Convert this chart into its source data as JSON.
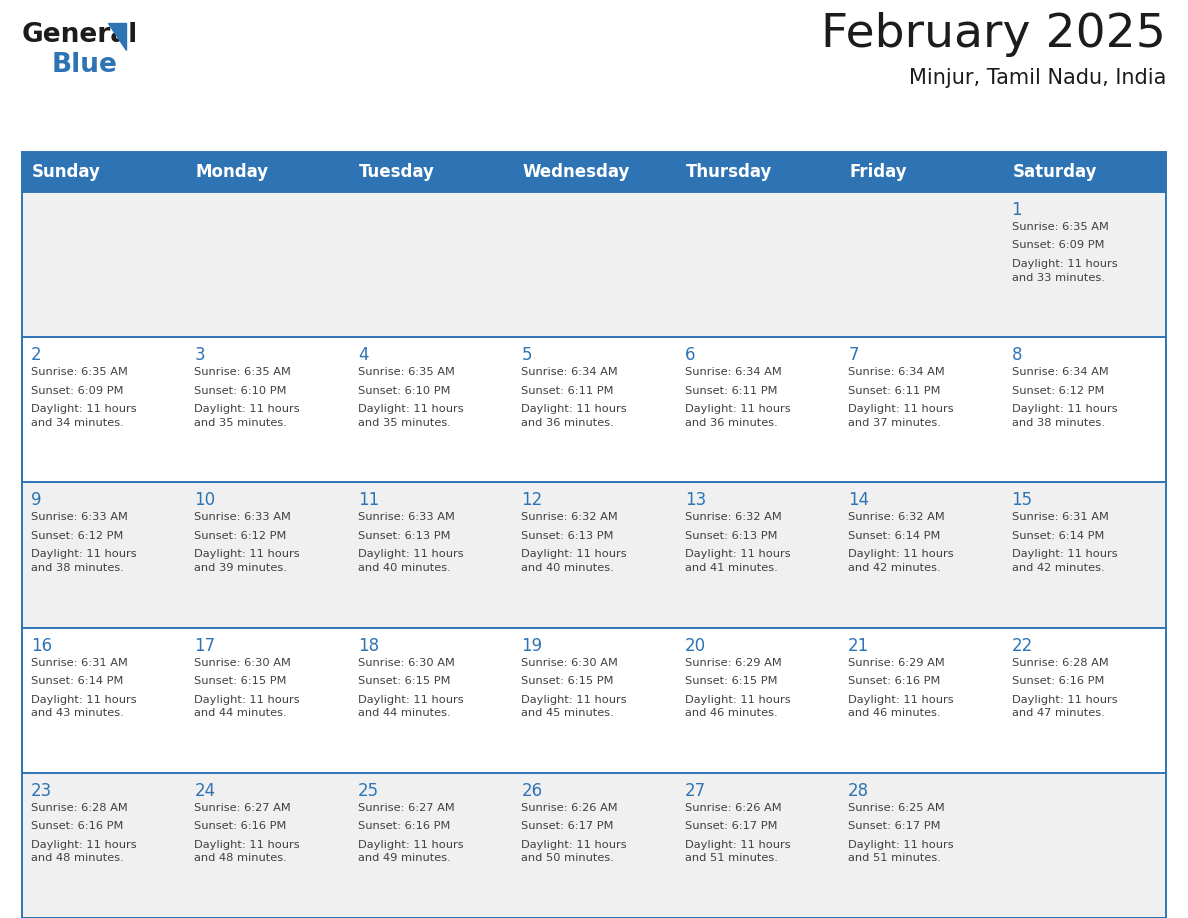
{
  "title": "February 2025",
  "subtitle": "Minjur, Tamil Nadu, India",
  "days_of_week": [
    "Sunday",
    "Monday",
    "Tuesday",
    "Wednesday",
    "Thursday",
    "Friday",
    "Saturday"
  ],
  "header_bg_color": "#2E74B5",
  "header_text_color": "#FFFFFF",
  "alt_row_color": "#F0F0F0",
  "white_color": "#FFFFFF",
  "grid_line_color": "#2E74B5",
  "text_color": "#404040",
  "day_num_color": "#2E74B5",
  "calendar_data": [
    [
      null,
      null,
      null,
      null,
      null,
      null,
      {
        "day": "1",
        "sunrise": "6:35 AM",
        "sunset": "6:09 PM",
        "daylight": "11 hours\nand 33 minutes."
      }
    ],
    [
      {
        "day": "2",
        "sunrise": "6:35 AM",
        "sunset": "6:09 PM",
        "daylight": "11 hours\nand 34 minutes."
      },
      {
        "day": "3",
        "sunrise": "6:35 AM",
        "sunset": "6:10 PM",
        "daylight": "11 hours\nand 35 minutes."
      },
      {
        "day": "4",
        "sunrise": "6:35 AM",
        "sunset": "6:10 PM",
        "daylight": "11 hours\nand 35 minutes."
      },
      {
        "day": "5",
        "sunrise": "6:34 AM",
        "sunset": "6:11 PM",
        "daylight": "11 hours\nand 36 minutes."
      },
      {
        "day": "6",
        "sunrise": "6:34 AM",
        "sunset": "6:11 PM",
        "daylight": "11 hours\nand 36 minutes."
      },
      {
        "day": "7",
        "sunrise": "6:34 AM",
        "sunset": "6:11 PM",
        "daylight": "11 hours\nand 37 minutes."
      },
      {
        "day": "8",
        "sunrise": "6:34 AM",
        "sunset": "6:12 PM",
        "daylight": "11 hours\nand 38 minutes."
      }
    ],
    [
      {
        "day": "9",
        "sunrise": "6:33 AM",
        "sunset": "6:12 PM",
        "daylight": "11 hours\nand 38 minutes."
      },
      {
        "day": "10",
        "sunrise": "6:33 AM",
        "sunset": "6:12 PM",
        "daylight": "11 hours\nand 39 minutes."
      },
      {
        "day": "11",
        "sunrise": "6:33 AM",
        "sunset": "6:13 PM",
        "daylight": "11 hours\nand 40 minutes."
      },
      {
        "day": "12",
        "sunrise": "6:32 AM",
        "sunset": "6:13 PM",
        "daylight": "11 hours\nand 40 minutes."
      },
      {
        "day": "13",
        "sunrise": "6:32 AM",
        "sunset": "6:13 PM",
        "daylight": "11 hours\nand 41 minutes."
      },
      {
        "day": "14",
        "sunrise": "6:32 AM",
        "sunset": "6:14 PM",
        "daylight": "11 hours\nand 42 minutes."
      },
      {
        "day": "15",
        "sunrise": "6:31 AM",
        "sunset": "6:14 PM",
        "daylight": "11 hours\nand 42 minutes."
      }
    ],
    [
      {
        "day": "16",
        "sunrise": "6:31 AM",
        "sunset": "6:14 PM",
        "daylight": "11 hours\nand 43 minutes."
      },
      {
        "day": "17",
        "sunrise": "6:30 AM",
        "sunset": "6:15 PM",
        "daylight": "11 hours\nand 44 minutes."
      },
      {
        "day": "18",
        "sunrise": "6:30 AM",
        "sunset": "6:15 PM",
        "daylight": "11 hours\nand 44 minutes."
      },
      {
        "day": "19",
        "sunrise": "6:30 AM",
        "sunset": "6:15 PM",
        "daylight": "11 hours\nand 45 minutes."
      },
      {
        "day": "20",
        "sunrise": "6:29 AM",
        "sunset": "6:15 PM",
        "daylight": "11 hours\nand 46 minutes."
      },
      {
        "day": "21",
        "sunrise": "6:29 AM",
        "sunset": "6:16 PM",
        "daylight": "11 hours\nand 46 minutes."
      },
      {
        "day": "22",
        "sunrise": "6:28 AM",
        "sunset": "6:16 PM",
        "daylight": "11 hours\nand 47 minutes."
      }
    ],
    [
      {
        "day": "23",
        "sunrise": "6:28 AM",
        "sunset": "6:16 PM",
        "daylight": "11 hours\nand 48 minutes."
      },
      {
        "day": "24",
        "sunrise": "6:27 AM",
        "sunset": "6:16 PM",
        "daylight": "11 hours\nand 48 minutes."
      },
      {
        "day": "25",
        "sunrise": "6:27 AM",
        "sunset": "6:16 PM",
        "daylight": "11 hours\nand 49 minutes."
      },
      {
        "day": "26",
        "sunrise": "6:26 AM",
        "sunset": "6:17 PM",
        "daylight": "11 hours\nand 50 minutes."
      },
      {
        "day": "27",
        "sunrise": "6:26 AM",
        "sunset": "6:17 PM",
        "daylight": "11 hours\nand 51 minutes."
      },
      {
        "day": "28",
        "sunrise": "6:25 AM",
        "sunset": "6:17 PM",
        "daylight": "11 hours\nand 51 minutes."
      },
      null
    ]
  ],
  "fig_width": 11.88,
  "fig_height": 9.18,
  "dpi": 100
}
